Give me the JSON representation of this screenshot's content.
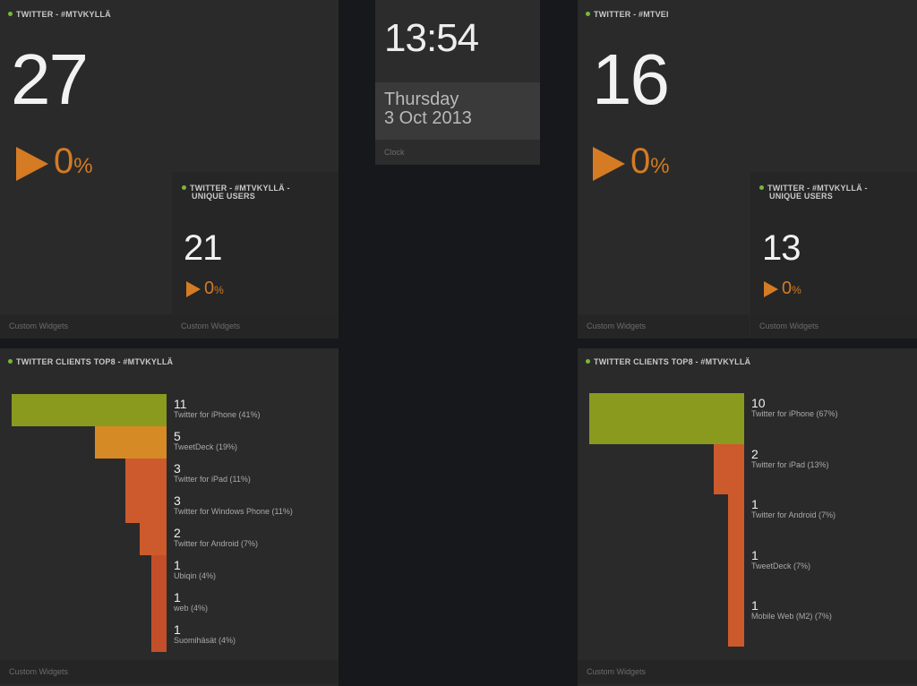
{
  "left_count": {
    "title": "TWITTER - #MTVKYLLÄ",
    "value": "27",
    "change_value": "0",
    "change_unit": "%",
    "unique": {
      "title_line1": "TWITTER - #MTVKYLLÄ -",
      "title_line2": "UNIQUE USERS",
      "value": "21",
      "change_value": "0",
      "change_unit": "%",
      "footer": "Custom Widgets"
    },
    "footer": "Custom Widgets"
  },
  "clock": {
    "time": "13:54",
    "day": "Thursday",
    "date": "3 Oct 2013",
    "footer": "Clock"
  },
  "right_count": {
    "title": "TWITTER - #MTVEI",
    "value": "16",
    "change_value": "0",
    "change_unit": "%",
    "unique": {
      "title_line1": "TWITTER - #MTVKYLLÄ -",
      "title_line2": "UNIQUE USERS",
      "value": "13",
      "change_value": "0",
      "change_unit": "%",
      "footer": "Custom Widgets"
    },
    "footer": "Custom Widgets"
  },
  "colors": {
    "accent_orange": "#d47b24",
    "status_green": "#7ab73a",
    "bar_colors": [
      "#8a9a1e",
      "#d68a26",
      "#cc5a2c",
      "#c34e2a"
    ]
  },
  "left_clients": {
    "title": "TWITTER CLIENTS TOP8 - #MTVKYLLÄ",
    "footer": "Custom Widgets",
    "items": [
      {
        "value": "11",
        "label": "Twitter for iPhone (41%)",
        "pct": 41
      },
      {
        "value": "5",
        "label": "TweetDeck (19%)",
        "pct": 19
      },
      {
        "value": "3",
        "label": "Twitter for iPad (11%)",
        "pct": 11
      },
      {
        "value": "3",
        "label": "Twitter for Windows Phone (11%)",
        "pct": 11
      },
      {
        "value": "2",
        "label": "Twitter for Android (7%)",
        "pct": 7
      },
      {
        "value": "1",
        "label": "Ubiqin (4%)",
        "pct": 4
      },
      {
        "value": "1",
        "label": "web (4%)",
        "pct": 4
      },
      {
        "value": "1",
        "label": "Suomihäsät (4%)",
        "pct": 4
      }
    ]
  },
  "right_clients": {
    "title": "TWITTER CLIENTS TOP8 - #MTVKYLLÄ",
    "footer": "Custom Widgets",
    "items": [
      {
        "value": "10",
        "label": "Twitter for iPhone (67%)",
        "pct": 67
      },
      {
        "value": "2",
        "label": "Twitter for iPad (13%)",
        "pct": 13
      },
      {
        "value": "1",
        "label": "Twitter for Android (7%)",
        "pct": 7
      },
      {
        "value": "1",
        "label": "TweetDeck (7%)",
        "pct": 7
      },
      {
        "value": "1",
        "label": "Mobile Web (M2) (7%)",
        "pct": 7
      }
    ]
  }
}
